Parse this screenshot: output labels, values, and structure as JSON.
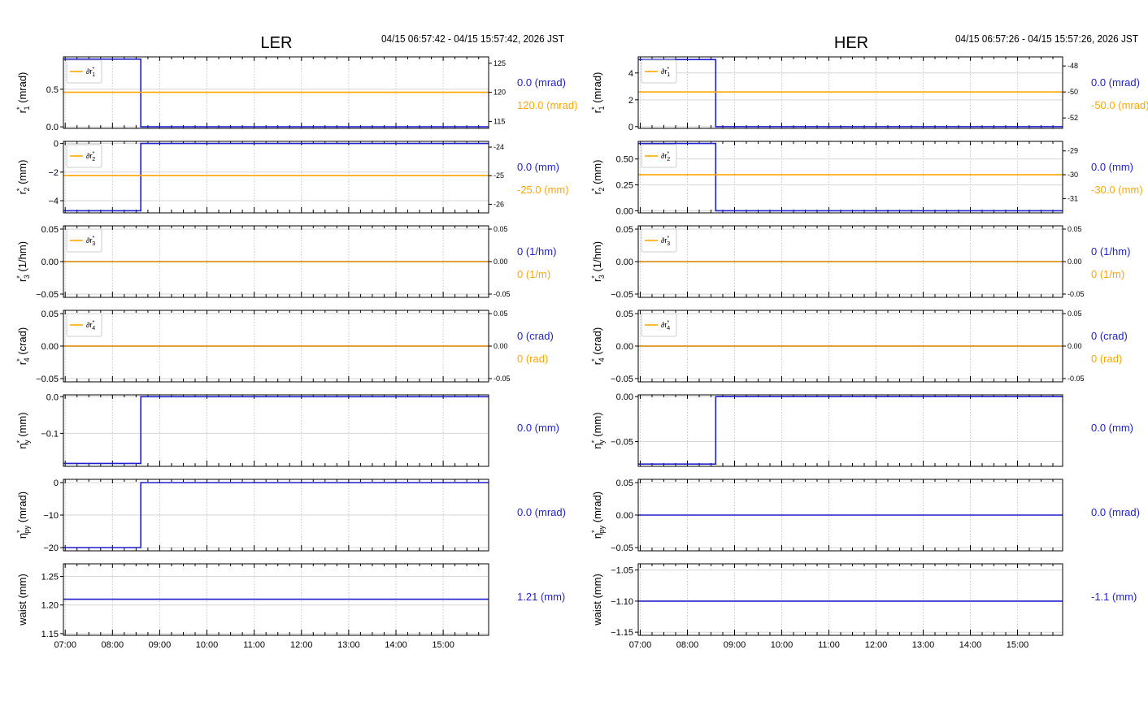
{
  "colors": {
    "blue": "#1f1fcc",
    "orange": "#ffa500",
    "grid": "#c8c8c8",
    "axis": "#000000"
  },
  "columns": [
    {
      "title": "LER",
      "time_range": "04/15 06:57:42 - 04/15 15:57:42, 2026 JST"
    },
    {
      "title": "HER",
      "time_range": "04/15 06:57:26 - 04/15 15:57:26, 2026 JST"
    }
  ],
  "x_ticks": [
    "07:00",
    "08:00",
    "09:00",
    "10:00",
    "11:00",
    "12:00",
    "13:00",
    "14:00",
    "15:00"
  ],
  "chart_data": [
    {
      "type": "line",
      "column": "LER",
      "ylabel": "r*1 (mrad)",
      "xlim": [
        6.962,
        15.962
      ],
      "ylim": [
        -0.02,
        0.93
      ],
      "yticks": [
        "0.0",
        "0.5"
      ],
      "ytick_values": [
        0.0,
        0.5
      ],
      "y2lim": [
        113.8,
        126.1
      ],
      "y2ticks": [
        "115",
        "120",
        "125"
      ],
      "y2tick_values": [
        115,
        120,
        125
      ],
      "legend": "∂r*1",
      "series": [
        {
          "axis": "left",
          "x": [
            6.962,
            8.6,
            8.6,
            15.962
          ],
          "values": [
            0.9,
            0.9,
            0.0,
            0.0
          ]
        },
        {
          "axis": "right",
          "x": [
            6.962,
            15.962
          ],
          "values": [
            120.0,
            120.0
          ]
        }
      ],
      "value_labels": [
        "0.0 (mrad)",
        "120.0 (mrad)"
      ]
    },
    {
      "type": "line",
      "column": "LER",
      "ylabel": "r*2 (mm)",
      "xlim": [
        6.962,
        15.962
      ],
      "ylim": [
        -4.85,
        0.15
      ],
      "yticks": [
        "0",
        "−2",
        "−4"
      ],
      "ytick_values": [
        0,
        -2,
        -4
      ],
      "y2lim": [
        -26.3,
        -23.8
      ],
      "y2ticks": [
        "-24",
        "-25",
        "-26"
      ],
      "y2tick_values": [
        -24,
        -25,
        -26
      ],
      "legend": "∂r*2",
      "series": [
        {
          "axis": "left",
          "x": [
            6.962,
            8.6,
            8.6,
            15.962
          ],
          "values": [
            -4.7,
            -4.7,
            0.0,
            0.0
          ]
        },
        {
          "axis": "right",
          "x": [
            6.962,
            15.962
          ],
          "values": [
            -25.0,
            -25.0
          ]
        }
      ],
      "value_labels": [
        "0.0 (mm)",
        "-25.0 (mm)"
      ]
    },
    {
      "type": "line",
      "column": "LER",
      "ylabel": "r*3 (1/hm)",
      "xlim": [
        6.962,
        15.962
      ],
      "ylim": [
        -0.055,
        0.055
      ],
      "yticks": [
        "0.05",
        "0.00",
        "−0.05"
      ],
      "ytick_values": [
        0.05,
        0,
        -0.05
      ],
      "y2lim": [
        -0.055,
        0.055
      ],
      "y2ticks": [
        "0.05",
        "0.00",
        "-0.05"
      ],
      "y2tick_values": [
        0.05,
        0,
        -0.05
      ],
      "legend": "∂r*3",
      "series": [
        {
          "axis": "left",
          "x": [
            6.962,
            15.962
          ],
          "values": [
            0,
            0
          ]
        },
        {
          "axis": "right",
          "x": [
            6.962,
            15.962
          ],
          "values": [
            0,
            0
          ]
        }
      ],
      "value_labels": [
        "0 (1/hm)",
        "0 (1/m)"
      ]
    },
    {
      "type": "line",
      "column": "LER",
      "ylabel": "r*4 (crad)",
      "xlim": [
        6.962,
        15.962
      ],
      "ylim": [
        -0.055,
        0.055
      ],
      "yticks": [
        "0.05",
        "0.00",
        "−0.05"
      ],
      "ytick_values": [
        0.05,
        0,
        -0.05
      ],
      "y2lim": [
        -0.055,
        0.055
      ],
      "y2ticks": [
        "0.05",
        "0.00",
        "-0.05"
      ],
      "y2tick_values": [
        0.05,
        0,
        -0.05
      ],
      "legend": "∂r*4",
      "series": [
        {
          "axis": "left",
          "x": [
            6.962,
            15.962
          ],
          "values": [
            0,
            0
          ]
        },
        {
          "axis": "right",
          "x": [
            6.962,
            15.962
          ],
          "values": [
            0,
            0
          ]
        }
      ],
      "value_labels": [
        "0 (crad)",
        "0 (rad)"
      ]
    },
    {
      "type": "line",
      "column": "LER",
      "ylabel": "η*y (mm)",
      "xlim": [
        6.962,
        15.962
      ],
      "ylim": [
        -0.19,
        0.005
      ],
      "yticks": [
        "0.0",
        "−0.1"
      ],
      "ytick_values": [
        0,
        -0.1
      ],
      "series": [
        {
          "axis": "left",
          "x": [
            6.962,
            8.6,
            8.6,
            15.962
          ],
          "values": [
            -0.182,
            -0.182,
            0.0,
            0.0
          ]
        }
      ],
      "value_labels": [
        "0.0 (mm)"
      ]
    },
    {
      "type": "line",
      "column": "LER",
      "ylabel": "η*py (mrad)",
      "xlim": [
        6.962,
        15.962
      ],
      "ylim": [
        -21.0,
        1.0
      ],
      "yticks": [
        "0",
        "−10",
        "−20"
      ],
      "ytick_values": [
        0,
        -10,
        -20
      ],
      "series": [
        {
          "axis": "left",
          "x": [
            6.962,
            8.6,
            8.6,
            15.962
          ],
          "values": [
            -20.0,
            -20.0,
            0.0,
            0.0
          ]
        }
      ],
      "value_labels": [
        "0.0 (mrad)"
      ]
    },
    {
      "type": "line",
      "column": "LER",
      "ylabel": "waist (mm)",
      "xlim": [
        6.962,
        15.962
      ],
      "ylim": [
        1.147,
        1.272
      ],
      "yticks": [
        "1.25",
        "1.20",
        "1.15"
      ],
      "ytick_values": [
        1.25,
        1.2,
        1.15
      ],
      "series": [
        {
          "axis": "left",
          "x": [
            6.962,
            15.962
          ],
          "values": [
            1.21,
            1.21
          ]
        }
      ],
      "value_labels": [
        "1.21 (mm)"
      ]
    },
    {
      "type": "line",
      "column": "HER",
      "ylabel": "r*1 (mrad)",
      "xlim": [
        6.957,
        15.957
      ],
      "ylim": [
        -0.13,
        5.2
      ],
      "yticks": [
        "4",
        "2",
        "0"
      ],
      "ytick_values": [
        4,
        2,
        0
      ],
      "y2lim": [
        -52.8,
        -47.3
      ],
      "y2ticks": [
        "-48",
        "-50",
        "-52"
      ],
      "y2tick_values": [
        -48,
        -50,
        -52
      ],
      "legend": "∂r*1",
      "series": [
        {
          "axis": "left",
          "x": [
            6.957,
            8.6,
            8.6,
            15.957
          ],
          "values": [
            5.0,
            5.0,
            0.0,
            0.0
          ]
        },
        {
          "axis": "right",
          "x": [
            6.957,
            15.957
          ],
          "values": [
            -50.0,
            -50.0
          ]
        }
      ],
      "value_labels": [
        "0.0 (mrad)",
        "-50.0 (mrad)"
      ]
    },
    {
      "type": "line",
      "column": "HER",
      "ylabel": "r*2 (mm)",
      "xlim": [
        6.957,
        15.957
      ],
      "ylim": [
        -0.02,
        0.67
      ],
      "yticks": [
        "0.50",
        "0.25",
        "0.00"
      ],
      "ytick_values": [
        0.5,
        0.25,
        0
      ],
      "y2lim": [
        -31.6,
        -28.6
      ],
      "y2ticks": [
        "-29",
        "-30",
        "-31"
      ],
      "y2tick_values": [
        -29,
        -30,
        -31
      ],
      "legend": "∂r*2",
      "series": [
        {
          "axis": "left",
          "x": [
            6.957,
            8.6,
            8.6,
            15.957
          ],
          "values": [
            0.65,
            0.65,
            0.0,
            0.0
          ]
        },
        {
          "axis": "right",
          "x": [
            6.957,
            15.957
          ],
          "values": [
            -30.0,
            -30.0
          ]
        }
      ],
      "value_labels": [
        "0.0 (mm)",
        "-30.0 (mm)"
      ]
    },
    {
      "type": "line",
      "column": "HER",
      "ylabel": "r*3 (1/hm)",
      "xlim": [
        6.957,
        15.957
      ],
      "ylim": [
        -0.055,
        0.055
      ],
      "yticks": [
        "0.05",
        "0.00",
        "−0.05"
      ],
      "ytick_values": [
        0.05,
        0,
        -0.05
      ],
      "y2lim": [
        -0.055,
        0.055
      ],
      "y2ticks": [
        "0.05",
        "0.00",
        "-0.05"
      ],
      "y2tick_values": [
        0.05,
        0,
        -0.05
      ],
      "legend": "∂r*3",
      "series": [
        {
          "axis": "left",
          "x": [
            6.957,
            15.957
          ],
          "values": [
            0,
            0
          ]
        },
        {
          "axis": "right",
          "x": [
            6.957,
            15.957
          ],
          "values": [
            0,
            0
          ]
        }
      ],
      "value_labels": [
        "0 (1/hm)",
        "0 (1/m)"
      ]
    },
    {
      "type": "line",
      "column": "HER",
      "ylabel": "r*4 (crad)",
      "xlim": [
        6.957,
        15.957
      ],
      "ylim": [
        -0.055,
        0.055
      ],
      "yticks": [
        "0.05",
        "0.00",
        "−0.05"
      ],
      "ytick_values": [
        0.05,
        0,
        -0.05
      ],
      "y2lim": [
        -0.055,
        0.055
      ],
      "y2ticks": [
        "0.05",
        "0.00",
        "-0.05"
      ],
      "y2tick_values": [
        0.05,
        0,
        -0.05
      ],
      "legend": "∂r*4",
      "series": [
        {
          "axis": "left",
          "x": [
            6.957,
            15.957
          ],
          "values": [
            0,
            0
          ]
        },
        {
          "axis": "right",
          "x": [
            6.957,
            15.957
          ],
          "values": [
            0,
            0
          ]
        }
      ],
      "value_labels": [
        "0 (crad)",
        "0 (rad)"
      ]
    },
    {
      "type": "line",
      "column": "HER",
      "ylabel": "η*y (mm)",
      "xlim": [
        6.957,
        15.957
      ],
      "ylim": [
        -0.0775,
        0.002
      ],
      "yticks": [
        "0.00",
        "−0.05"
      ],
      "ytick_values": [
        0,
        -0.05
      ],
      "series": [
        {
          "axis": "left",
          "x": [
            6.957,
            8.6,
            8.6,
            15.957
          ],
          "values": [
            -0.075,
            -0.075,
            0.0,
            0.0
          ]
        }
      ],
      "value_labels": [
        "0.0 (mm)"
      ]
    },
    {
      "type": "line",
      "column": "HER",
      "ylabel": "η*py (mrad)",
      "xlim": [
        6.957,
        15.957
      ],
      "ylim": [
        -0.055,
        0.055
      ],
      "yticks": [
        "0.05",
        "0.00",
        "−0.05"
      ],
      "ytick_values": [
        0.05,
        0,
        -0.05
      ],
      "series": [
        {
          "axis": "left",
          "x": [
            6.957,
            15.957
          ],
          "values": [
            0,
            0
          ]
        }
      ],
      "value_labels": [
        "0.0 (mrad)"
      ]
    },
    {
      "type": "line",
      "column": "HER",
      "ylabel": "waist (mm)",
      "xlim": [
        6.957,
        15.957
      ],
      "ylim": [
        -1.155,
        -1.04
      ],
      "yticks": [
        "−1.05",
        "−1.10",
        "−1.15"
      ],
      "ytick_values": [
        -1.05,
        -1.1,
        -1.15
      ],
      "series": [
        {
          "axis": "left",
          "x": [
            6.957,
            15.957
          ],
          "values": [
            -1.1,
            -1.1
          ]
        }
      ],
      "value_labels": [
        "-1.1 (mm)"
      ]
    }
  ]
}
